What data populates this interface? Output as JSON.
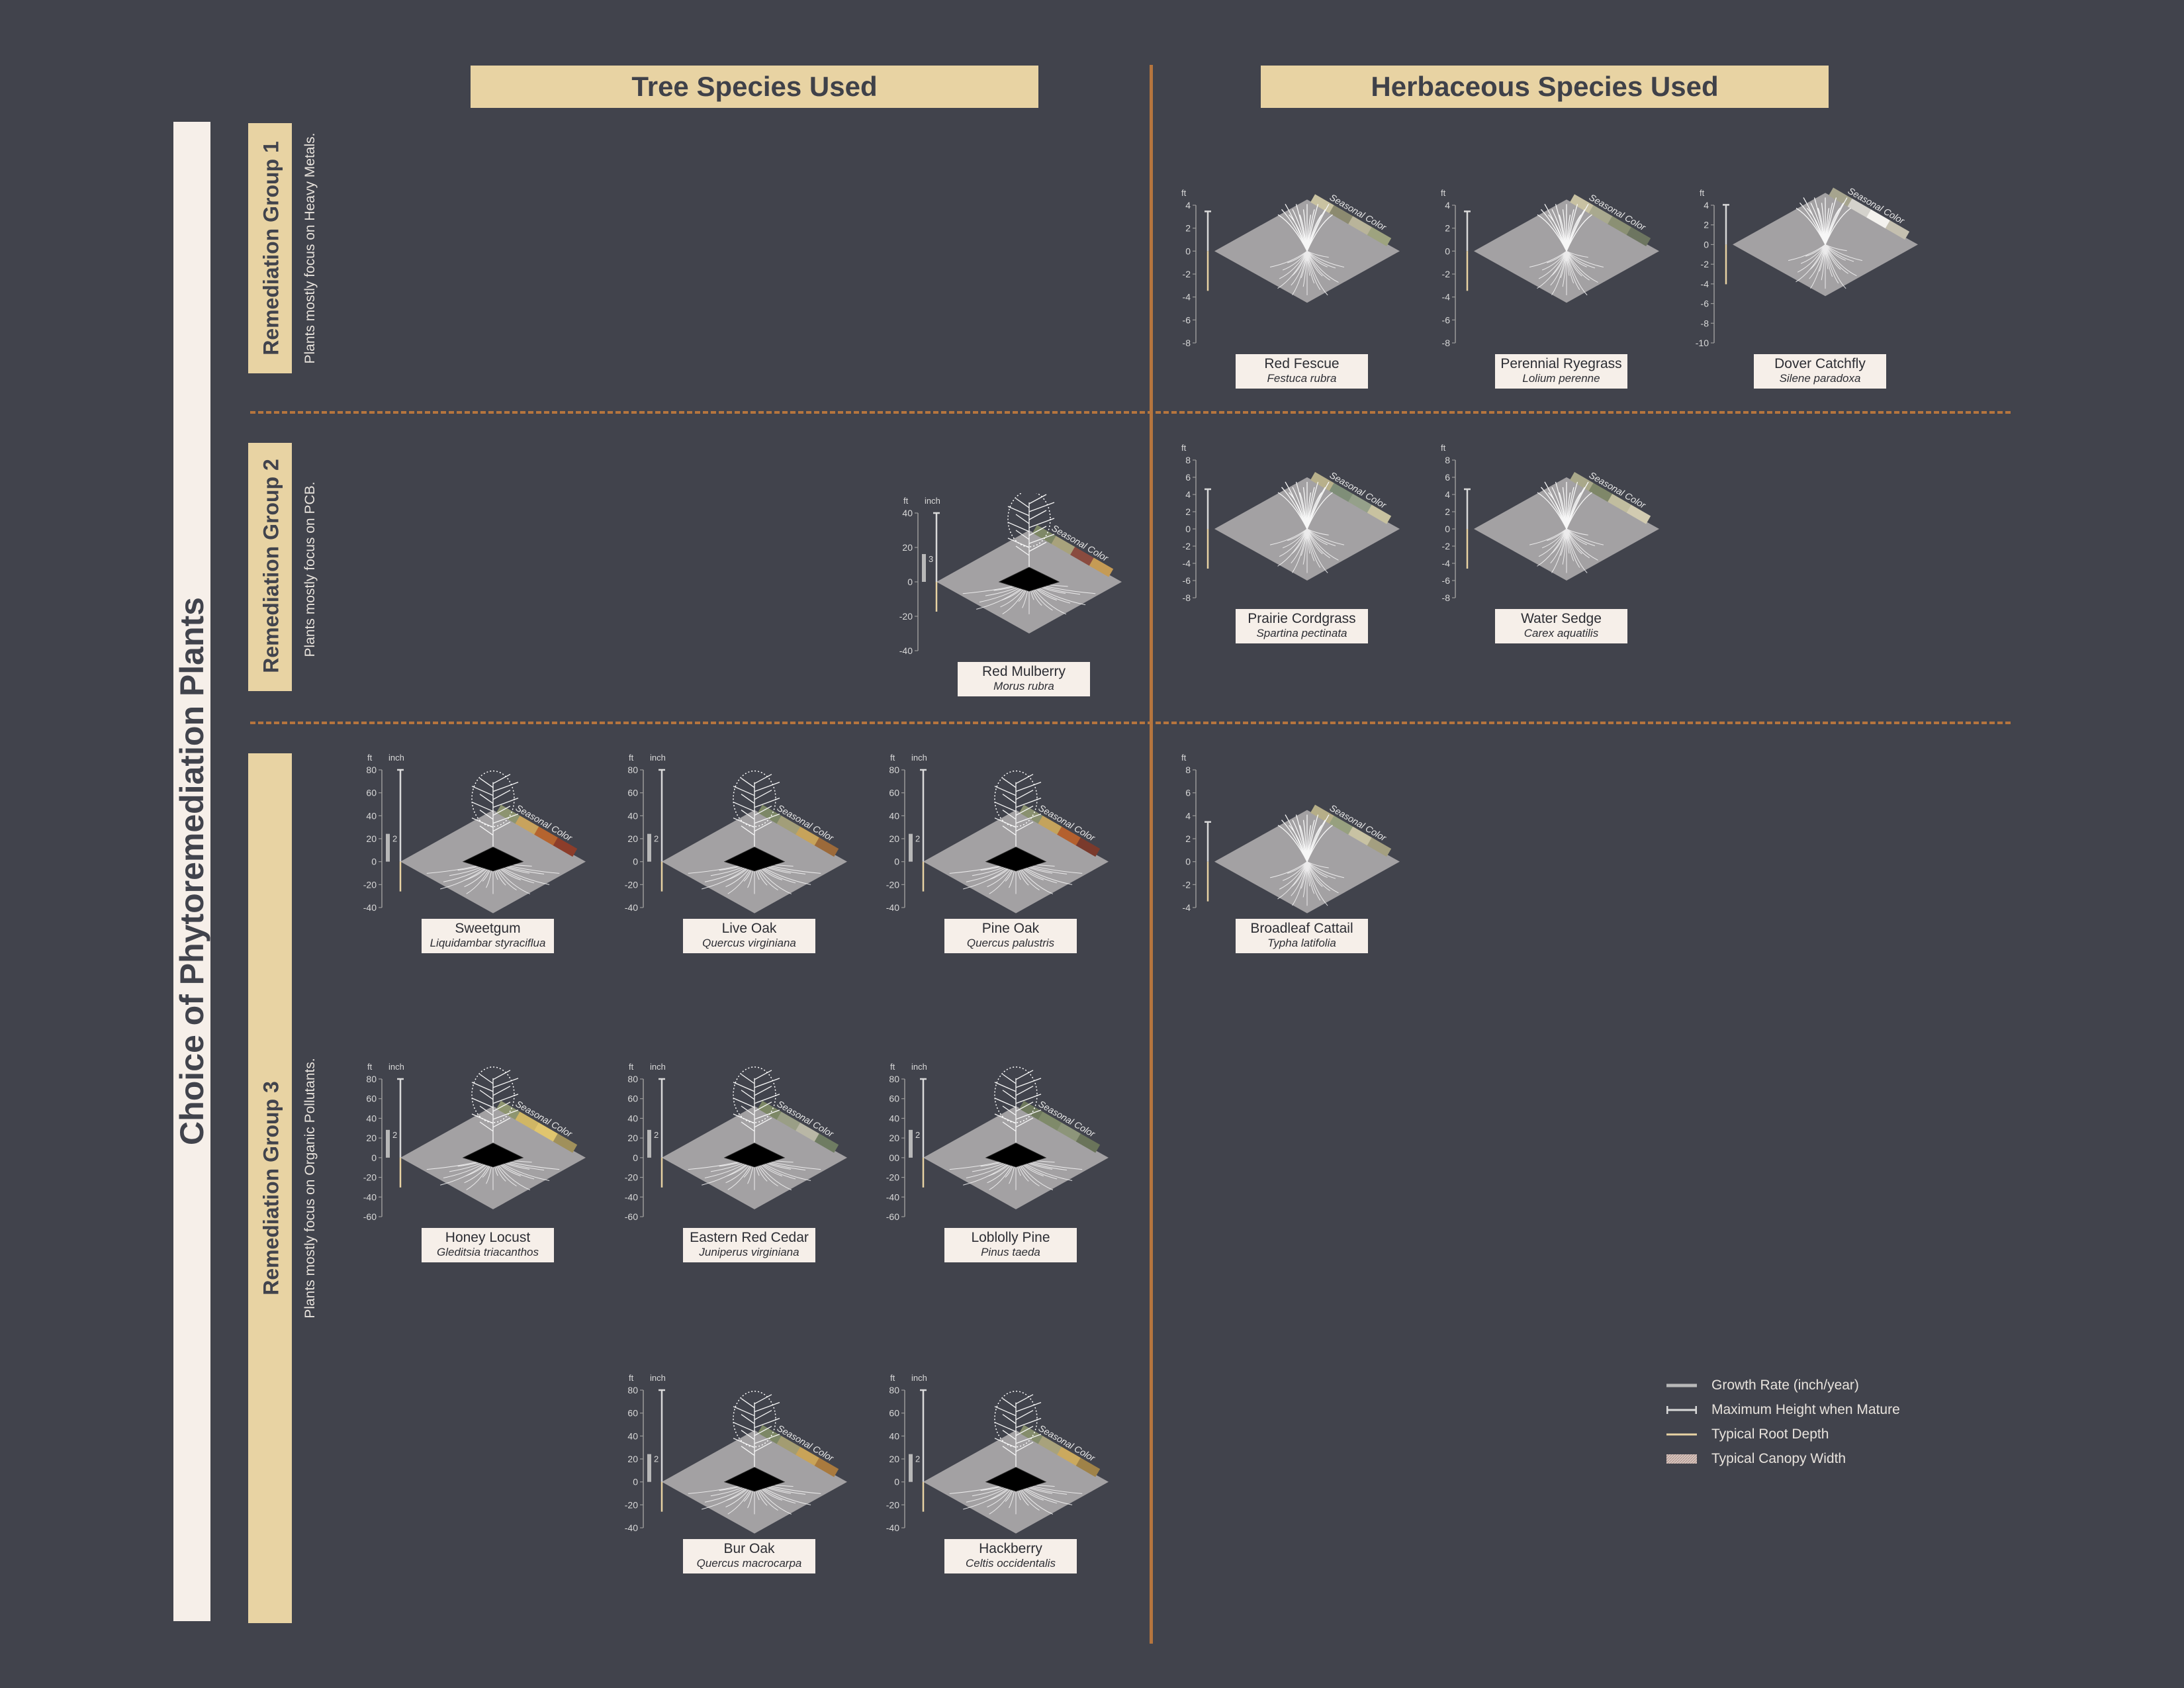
{
  "main_title": "Choice of Phytoremediation Plants",
  "columns": {
    "trees": "Tree Species Used",
    "herbs": "Herbaceous Species Used"
  },
  "groups": [
    {
      "title": "Remediation Group 1",
      "desc": "Plants mostly focus on Heavy Metals."
    },
    {
      "title": "Remediation Group 2",
      "desc": "Plants mostly focus on PCB."
    },
    {
      "title": "Remediation Group 3",
      "desc": "Plants mostly focus on Organic Pollutants."
    }
  ],
  "seasonal_color_label": "Seasonal Color",
  "axis_units": {
    "ft": "ft",
    "inch": "inch"
  },
  "plants": [
    {
      "common": "Red Fescue",
      "sci": "Festuca rubra",
      "kind": "herb",
      "ticks": [
        "4",
        "2",
        "0",
        "-2",
        "-4",
        "-6",
        "-8"
      ],
      "inch_tick": "",
      "colors": [
        "#c9c2a1",
        "#8c8a70",
        "#b9b49a",
        "#9ea37f"
      ]
    },
    {
      "common": "Perennial Ryegrass",
      "sci": "Lolium perenne",
      "kind": "herb",
      "ticks": [
        "4",
        "2",
        "0",
        "-2",
        "-4",
        "-6",
        "-8"
      ],
      "inch_tick": "",
      "colors": [
        "#c8c1a2",
        "#a9a98f",
        "#8b9074",
        "#6d7560"
      ]
    },
    {
      "common": "Dover Catchfly",
      "sci": "Silene paradoxa",
      "kind": "herb",
      "ticks": [
        "4",
        "2",
        "0",
        "-2",
        "-4",
        "-6",
        "-8",
        "-10"
      ],
      "inch_tick": "",
      "colors": [
        "#a6a48e",
        "#d4d2cc",
        "#f4f2ee",
        "#c5c0b0"
      ]
    },
    {
      "common": "Red Mulberry",
      "sci": "Morus rubra",
      "kind": "tree",
      "ticks": [
        "40",
        "20",
        "0",
        "-20",
        "-40"
      ],
      "inch_tick": "3",
      "colors": [
        "#7e8866",
        "#a8a27c",
        "#8a4b3f",
        "#c59b55"
      ]
    },
    {
      "common": "Prairie Cordgrass",
      "sci": "Spartina pectinata",
      "kind": "herb",
      "ticks": [
        "8",
        "6",
        "4",
        "2",
        "0",
        "-2",
        "-4",
        "-6",
        "-8"
      ],
      "inch_tick": "",
      "colors": [
        "#b8b08b",
        "#7f8e78",
        "#95a08a",
        "#c8c2a0"
      ]
    },
    {
      "common": "Water Sedge",
      "sci": "Carex aquatilis",
      "kind": "herb",
      "ticks": [
        "8",
        "6",
        "4",
        "2",
        "0",
        "-2",
        "-4",
        "-6",
        "-8"
      ],
      "inch_tick": "",
      "colors": [
        "#a9a88a",
        "#7f8769",
        "#c1bd9f",
        "#d2cbb1"
      ]
    },
    {
      "common": "Sweetgum",
      "sci": "Liquidambar styraciflua",
      "kind": "tree",
      "ticks": [
        "80",
        "60",
        "40",
        "20",
        "0",
        "-20",
        "-40"
      ],
      "inch_tick": "2",
      "colors": [
        "#8d9470",
        "#c8a35d",
        "#b5642f",
        "#8c3d2a"
      ]
    },
    {
      "common": "Live Oak",
      "sci": "Quercus virginiana",
      "kind": "tree",
      "ticks": [
        "80",
        "60",
        "40",
        "20",
        "0",
        "-20",
        "-40"
      ],
      "inch_tick": "2",
      "colors": [
        "#7d8867",
        "#a29e79",
        "#c7a35a",
        "#9c6a3a"
      ]
    },
    {
      "common": "Pine Oak",
      "sci": "Quercus palustris",
      "kind": "tree",
      "ticks": [
        "80",
        "60",
        "40",
        "20",
        "0",
        "-20",
        "-40"
      ],
      "inch_tick": "2",
      "colors": [
        "#8a9170",
        "#c4a35c",
        "#b4602e",
        "#7a3a2c"
      ]
    },
    {
      "common": "Broadleaf Cattail",
      "sci": "Typha latifolia",
      "kind": "herb",
      "ticks": [
        "8",
        "6",
        "4",
        "2",
        "0",
        "-2",
        "-4"
      ],
      "inch_tick": "",
      "colors": [
        "#b6ae88",
        "#97a07f",
        "#c8c2a3",
        "#a49f80"
      ]
    },
    {
      "common": "Honey Locust",
      "sci": "Gleditsia triacanthos",
      "kind": "tree",
      "ticks": [
        "80",
        "60",
        "40",
        "20",
        "0",
        "-20",
        "-40",
        "-60"
      ],
      "inch_tick": "2",
      "colors": [
        "#8e9570",
        "#d0b665",
        "#e0c56e",
        "#a0905b"
      ]
    },
    {
      "common": "Eastern Red Cedar",
      "sci": "Juniperus virginiana",
      "kind": "tree",
      "ticks": [
        "80",
        "60",
        "40",
        "20",
        "0",
        "-20",
        "-40",
        "-60"
      ],
      "inch_tick": "2",
      "colors": [
        "#7d8866",
        "#9a9e86",
        "#b9b7a6",
        "#6f7c62"
      ]
    },
    {
      "common": "Loblolly Pine",
      "sci": "Pinus taeda",
      "kind": "tree",
      "ticks": [
        "80",
        "60",
        "40",
        "20",
        "00",
        "-20",
        "-40",
        "-60"
      ],
      "inch_tick": "2",
      "colors": [
        "#6f7a5d",
        "#7f8a6a",
        "#8d957a",
        "#6a745a"
      ]
    },
    {
      "common": "Bur Oak",
      "sci": "Quercus macrocarpa",
      "kind": "tree",
      "ticks": [
        "80",
        "60",
        "40",
        "20",
        "0",
        "-20",
        "-40"
      ],
      "inch_tick": "2",
      "colors": [
        "#7d8866",
        "#a39c72",
        "#c9a358",
        "#a97a3e"
      ]
    },
    {
      "common": "Hackberry",
      "sci": "Celtis occidentalis",
      "kind": "tree",
      "ticks": [
        "80",
        "60",
        "40",
        "20",
        "0",
        "-20",
        "-40"
      ],
      "inch_tick": "2",
      "colors": [
        "#858d6c",
        "#a8a27c",
        "#cba95e",
        "#9f8248"
      ]
    }
  ],
  "legend": [
    {
      "label": "Growth Rate (inch/year)",
      "icon": "growth-rate-bar-icon"
    },
    {
      "label": "Maximum Height when Mature",
      "icon": "max-height-icon"
    },
    {
      "label": "Typical Root Depth",
      "icon": "root-depth-icon"
    },
    {
      "label": "Typical Canopy Width",
      "icon": "canopy-width-icon"
    }
  ],
  "palette": {
    "background": "#41434c",
    "accent": "#e8d3a3",
    "divider": "#b5753e",
    "panel": "#f6efe9",
    "root": "#e8d3a3",
    "ground": "#a09ea0"
  }
}
